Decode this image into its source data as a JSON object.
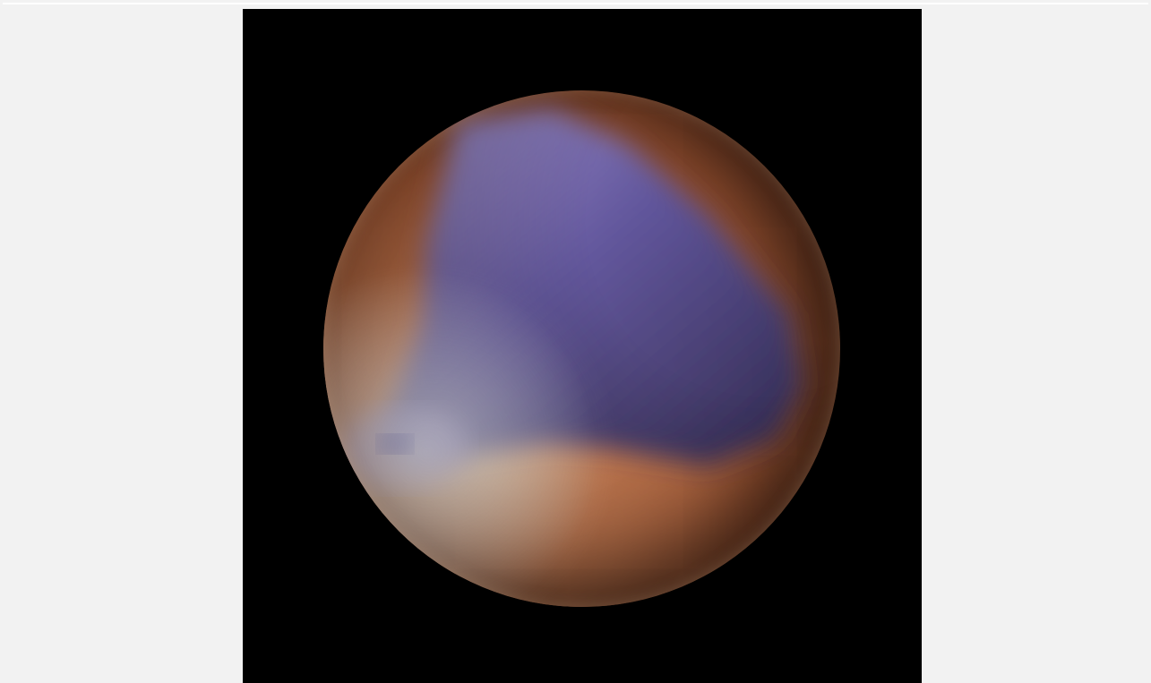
{
  "viewer": {
    "background_color": "#f2f2f2"
  },
  "image": {
    "background_color": "#000000",
    "subject": "planet-icon",
    "colors": {
      "land_light": "#f3c7a0",
      "land_mid": "#d9875a",
      "land_dark": "#a65a36",
      "ocean_light": "#8f86d6",
      "ocean_deep": "#2f2f6e"
    }
  }
}
